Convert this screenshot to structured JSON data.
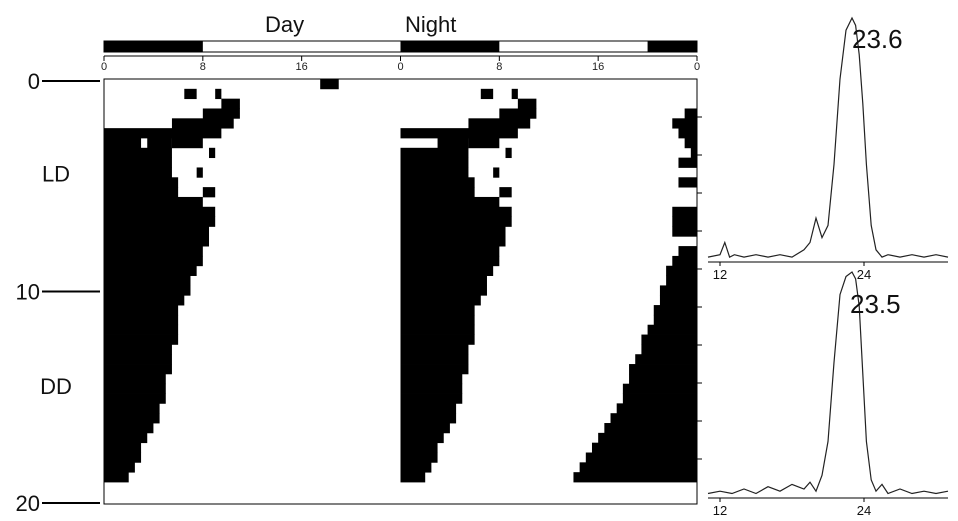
{
  "chart_data": [
    {
      "type": "heatmap",
      "subtype": "double-plotted actogram",
      "header_labels": [
        "Day",
        "Night"
      ],
      "lighting_bar": {
        "black_segments_hours": [
          [
            0,
            8
          ],
          [
            24,
            32
          ],
          [
            44,
            48
          ]
        ]
      },
      "x_ticks": [
        "0",
        "8",
        "16",
        "0",
        "8",
        "16",
        "0"
      ],
      "x_tick_values": [
        0,
        8,
        16,
        24,
        32,
        40,
        48
      ],
      "xlim": [
        0,
        48
      ],
      "y_ticks": [
        "0",
        "10",
        "20"
      ],
      "y_tick_values": [
        0,
        10,
        20
      ],
      "ylim": [
        0,
        20
      ],
      "phase_labels": [
        {
          "text": "LD",
          "day": 4.5
        },
        {
          "text": "DD",
          "day": 14.5
        }
      ],
      "rows_activity_hours": [
        [
          [
            17.5,
            19
          ]
        ],
        [
          [
            6.5,
            7.5
          ],
          [
            9,
            9.5
          ],
          [
            30.5,
            31.5
          ],
          [
            33,
            33.5
          ]
        ],
        [
          [
            9.5,
            11
          ],
          [
            33.5,
            35
          ]
        ],
        [
          [
            8,
            11
          ],
          [
            32,
            35
          ],
          [
            47,
            48
          ]
        ],
        [
          [
            5.5,
            10.5
          ],
          [
            29.5,
            34.5
          ],
          [
            46,
            48
          ]
        ],
        [
          [
            0,
            9.5
          ],
          [
            24,
            33.5
          ],
          [
            46.5,
            48
          ]
        ],
        [
          [
            0,
            3
          ],
          [
            3.5,
            5.5
          ],
          [
            5.5,
            8
          ],
          [
            27,
            29.5
          ],
          [
            29.5,
            32
          ],
          [
            47,
            48
          ]
        ],
        [
          [
            0,
            5.5
          ],
          [
            8.5,
            9
          ],
          [
            24,
            29.5
          ],
          [
            32.5,
            33
          ],
          [
            47.5,
            48
          ]
        ],
        [
          [
            0,
            5.5
          ],
          [
            24,
            29.5
          ],
          [
            46.5,
            48
          ]
        ],
        [
          [
            0,
            5.5
          ],
          [
            7.5,
            8
          ],
          [
            24,
            29.5
          ],
          [
            31.5,
            32
          ]
        ],
        [
          [
            0,
            6
          ],
          [
            24,
            30
          ],
          [
            46.5,
            48
          ]
        ],
        [
          [
            0,
            6
          ],
          [
            8,
            9
          ],
          [
            24,
            30
          ],
          [
            32,
            33
          ]
        ],
        [
          [
            0,
            8
          ],
          [
            24,
            32
          ]
        ],
        [
          [
            0,
            9
          ],
          [
            24,
            33
          ],
          [
            46,
            48
          ]
        ],
        [
          [
            0,
            9
          ],
          [
            24,
            33
          ],
          [
            46,
            48
          ]
        ],
        [
          [
            0,
            8.5
          ],
          [
            24,
            32.5
          ],
          [
            46,
            48
          ]
        ],
        [
          [
            0,
            8.5
          ],
          [
            24,
            32.5
          ]
        ],
        [
          [
            0,
            8
          ],
          [
            24,
            32
          ],
          [
            46.5,
            48
          ]
        ],
        [
          [
            0,
            8
          ],
          [
            24,
            32
          ],
          [
            46,
            48
          ]
        ],
        [
          [
            0,
            7.5
          ],
          [
            24,
            31.5
          ],
          [
            45.5,
            48
          ]
        ],
        [
          [
            0,
            7
          ],
          [
            24,
            31
          ],
          [
            45.5,
            48
          ]
        ],
        [
          [
            0,
            7
          ],
          [
            24,
            31
          ],
          [
            45,
            48
          ]
        ],
        [
          [
            0,
            6.5
          ],
          [
            24,
            30.5
          ],
          [
            45,
            48
          ]
        ],
        [
          [
            0,
            6
          ],
          [
            24,
            30
          ],
          [
            44.5,
            48
          ]
        ],
        [
          [
            0,
            6
          ],
          [
            24,
            30
          ],
          [
            44.5,
            48
          ]
        ],
        [
          [
            0,
            6
          ],
          [
            24,
            30
          ],
          [
            44,
            48
          ]
        ],
        [
          [
            0,
            6
          ],
          [
            24,
            30
          ],
          [
            43.5,
            48
          ]
        ],
        [
          [
            0,
            5.5
          ],
          [
            24,
            29.5
          ],
          [
            43.5,
            48
          ]
        ],
        [
          [
            0,
            5.5
          ],
          [
            24,
            29.5
          ],
          [
            43,
            48
          ]
        ],
        [
          [
            0,
            5.5
          ],
          [
            24,
            29.5
          ],
          [
            42.5,
            48
          ]
        ],
        [
          [
            0,
            5
          ],
          [
            24,
            29
          ],
          [
            42.5,
            48
          ]
        ],
        [
          [
            0,
            5
          ],
          [
            24,
            29
          ],
          [
            42,
            48
          ]
        ],
        [
          [
            0,
            5
          ],
          [
            24,
            29
          ],
          [
            42,
            48
          ]
        ],
        [
          [
            0,
            4.5
          ],
          [
            24,
            28.5
          ],
          [
            41.5,
            48
          ]
        ],
        [
          [
            0,
            4.5
          ],
          [
            24,
            28.5
          ],
          [
            41,
            48
          ]
        ],
        [
          [
            0,
            4
          ],
          [
            24,
            28
          ],
          [
            40.5,
            48
          ]
        ],
        [
          [
            0,
            3.5
          ],
          [
            24,
            27.5
          ],
          [
            40,
            48
          ]
        ],
        [
          [
            0,
            3
          ],
          [
            24,
            27
          ],
          [
            39.5,
            48
          ]
        ],
        [
          [
            0,
            3
          ],
          [
            24,
            27
          ],
          [
            39,
            48
          ]
        ],
        [
          [
            0,
            2.5
          ],
          [
            24,
            26.5
          ],
          [
            38.5,
            48
          ]
        ],
        [
          [
            0,
            2
          ],
          [
            24,
            26
          ],
          [
            38,
            48
          ]
        ]
      ]
    },
    {
      "type": "line",
      "subtype": "periodogram",
      "peak_label": "23.6",
      "x_ticks": [
        "12",
        "24"
      ],
      "x_tick_values": [
        12,
        24
      ],
      "xlim": [
        11,
        31
      ],
      "ylim": [
        0,
        1
      ],
      "x": [
        11,
        12,
        12.4,
        12.8,
        13.2,
        14,
        15,
        16,
        17,
        18,
        19,
        19.5,
        20,
        20.5,
        21,
        21.5,
        22,
        22.5,
        23,
        23.3,
        23.6,
        23.9,
        24.2,
        24.6,
        25,
        25.5,
        26,
        27,
        28,
        29,
        30,
        31
      ],
      "y": [
        0.02,
        0.03,
        0.08,
        0.02,
        0.03,
        0.02,
        0.03,
        0.02,
        0.03,
        0.02,
        0.05,
        0.08,
        0.18,
        0.1,
        0.15,
        0.4,
        0.75,
        0.95,
        1.0,
        0.97,
        0.85,
        0.65,
        0.4,
        0.15,
        0.05,
        0.02,
        0.03,
        0.02,
        0.03,
        0.02,
        0.03,
        0.02
      ]
    },
    {
      "type": "line",
      "subtype": "periodogram",
      "peak_label": "23.5",
      "x_ticks": [
        "12",
        "24"
      ],
      "x_tick_values": [
        12,
        24
      ],
      "xlim": [
        11,
        31
      ],
      "ylim": [
        0,
        1
      ],
      "x": [
        11,
        12,
        13,
        14,
        15,
        16,
        17,
        18,
        19,
        19.5,
        20,
        20.5,
        21,
        21.5,
        22,
        22.5,
        23,
        23.3,
        23.6,
        23.9,
        24.2,
        24.6,
        25,
        25.5,
        26,
        27,
        28,
        29,
        30,
        31
      ],
      "y": [
        0.02,
        0.03,
        0.02,
        0.04,
        0.02,
        0.05,
        0.03,
        0.06,
        0.04,
        0.07,
        0.03,
        0.1,
        0.25,
        0.6,
        0.9,
        0.98,
        1.0,
        0.97,
        0.85,
        0.55,
        0.25,
        0.08,
        0.03,
        0.06,
        0.02,
        0.04,
        0.02,
        0.03,
        0.02,
        0.03
      ]
    }
  ]
}
